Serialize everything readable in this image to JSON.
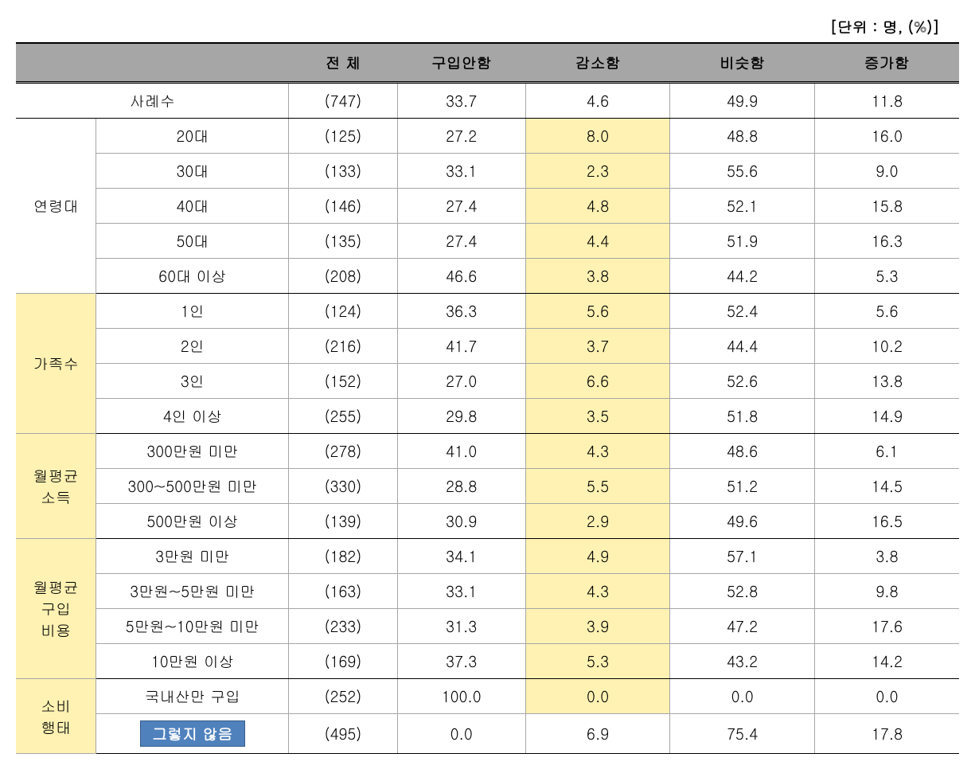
{
  "unit_label": "[단위 : 명, (%)]",
  "columns": [
    "전 체",
    "구입안함",
    "감소함",
    "비슷함",
    "증가함"
  ],
  "summary": {
    "label": "사례수",
    "values": [
      "(747)",
      "33.7",
      "4.6",
      "49.9",
      "11.8"
    ]
  },
  "groups": [
    {
      "header": "연령대",
      "header_highlight": false,
      "rows": [
        {
          "label": "20대",
          "values": [
            "(125)",
            "27.2",
            "8.0",
            "48.8",
            "16.0"
          ],
          "hl_col": 2
        },
        {
          "label": "30대",
          "values": [
            "(133)",
            "33.1",
            "2.3",
            "55.6",
            "9.0"
          ],
          "hl_col": 2
        },
        {
          "label": "40대",
          "values": [
            "(146)",
            "27.4",
            "4.8",
            "52.1",
            "15.8"
          ],
          "hl_col": 2
        },
        {
          "label": "50대",
          "values": [
            "(135)",
            "27.4",
            "4.4",
            "51.9",
            "16.3"
          ],
          "hl_col": 2
        },
        {
          "label": "60대 이상",
          "values": [
            "(208)",
            "46.6",
            "3.8",
            "44.2",
            "5.3"
          ],
          "hl_col": 2
        }
      ]
    },
    {
      "header": "가족수",
      "header_highlight": true,
      "rows": [
        {
          "label": "1인",
          "values": [
            "(124)",
            "36.3",
            "5.6",
            "52.4",
            "5.6"
          ],
          "hl_col": 2
        },
        {
          "label": "2인",
          "values": [
            "(216)",
            "41.7",
            "3.7",
            "44.4",
            "10.2"
          ],
          "hl_col": 2
        },
        {
          "label": "3인",
          "values": [
            "(152)",
            "27.0",
            "6.6",
            "52.6",
            "13.8"
          ],
          "hl_col": 2
        },
        {
          "label": "4인 이상",
          "values": [
            "(255)",
            "29.8",
            "3.5",
            "51.8",
            "14.9"
          ],
          "hl_col": 2
        }
      ]
    },
    {
      "header": "월평균소득",
      "header_highlight": true,
      "rows": [
        {
          "label": "300만원 미만",
          "values": [
            "(278)",
            "41.0",
            "4.3",
            "48.6",
            "6.1"
          ],
          "hl_col": 2
        },
        {
          "label": "300~500만원 미만",
          "values": [
            "(330)",
            "28.8",
            "5.5",
            "51.2",
            "14.5"
          ],
          "hl_col": 2
        },
        {
          "label": "500만원 이상",
          "values": [
            "(139)",
            "30.9",
            "2.9",
            "49.6",
            "16.5"
          ],
          "hl_col": 2
        }
      ]
    },
    {
      "header": "월평균구입비용",
      "header_highlight": true,
      "rows": [
        {
          "label": "3만원 미만",
          "values": [
            "(182)",
            "34.1",
            "4.9",
            "57.1",
            "3.8"
          ],
          "hl_col": 2
        },
        {
          "label": "3만원~5만원 미만",
          "values": [
            "(163)",
            "33.1",
            "4.3",
            "52.8",
            "9.8"
          ],
          "hl_col": 2
        },
        {
          "label": "5만원~10만원 미만",
          "values": [
            "(233)",
            "31.3",
            "3.9",
            "47.2",
            "17.6"
          ],
          "hl_col": 2
        },
        {
          "label": "10만원 이상",
          "values": [
            "(169)",
            "37.3",
            "5.3",
            "43.2",
            "14.2"
          ],
          "hl_col": 2
        }
      ]
    },
    {
      "header": "소비행태",
      "header_highlight": true,
      "rows": [
        {
          "label": "국내산만 구입",
          "values": [
            "(252)",
            "100.0",
            "0.0",
            "0.0",
            "0.0"
          ],
          "hl_col": 2
        },
        {
          "label": "그렇지 않음",
          "blue": true,
          "values": [
            "(495)",
            "0.0",
            "6.9",
            "75.4",
            "17.8"
          ],
          "hl_col": -1
        }
      ]
    }
  ]
}
